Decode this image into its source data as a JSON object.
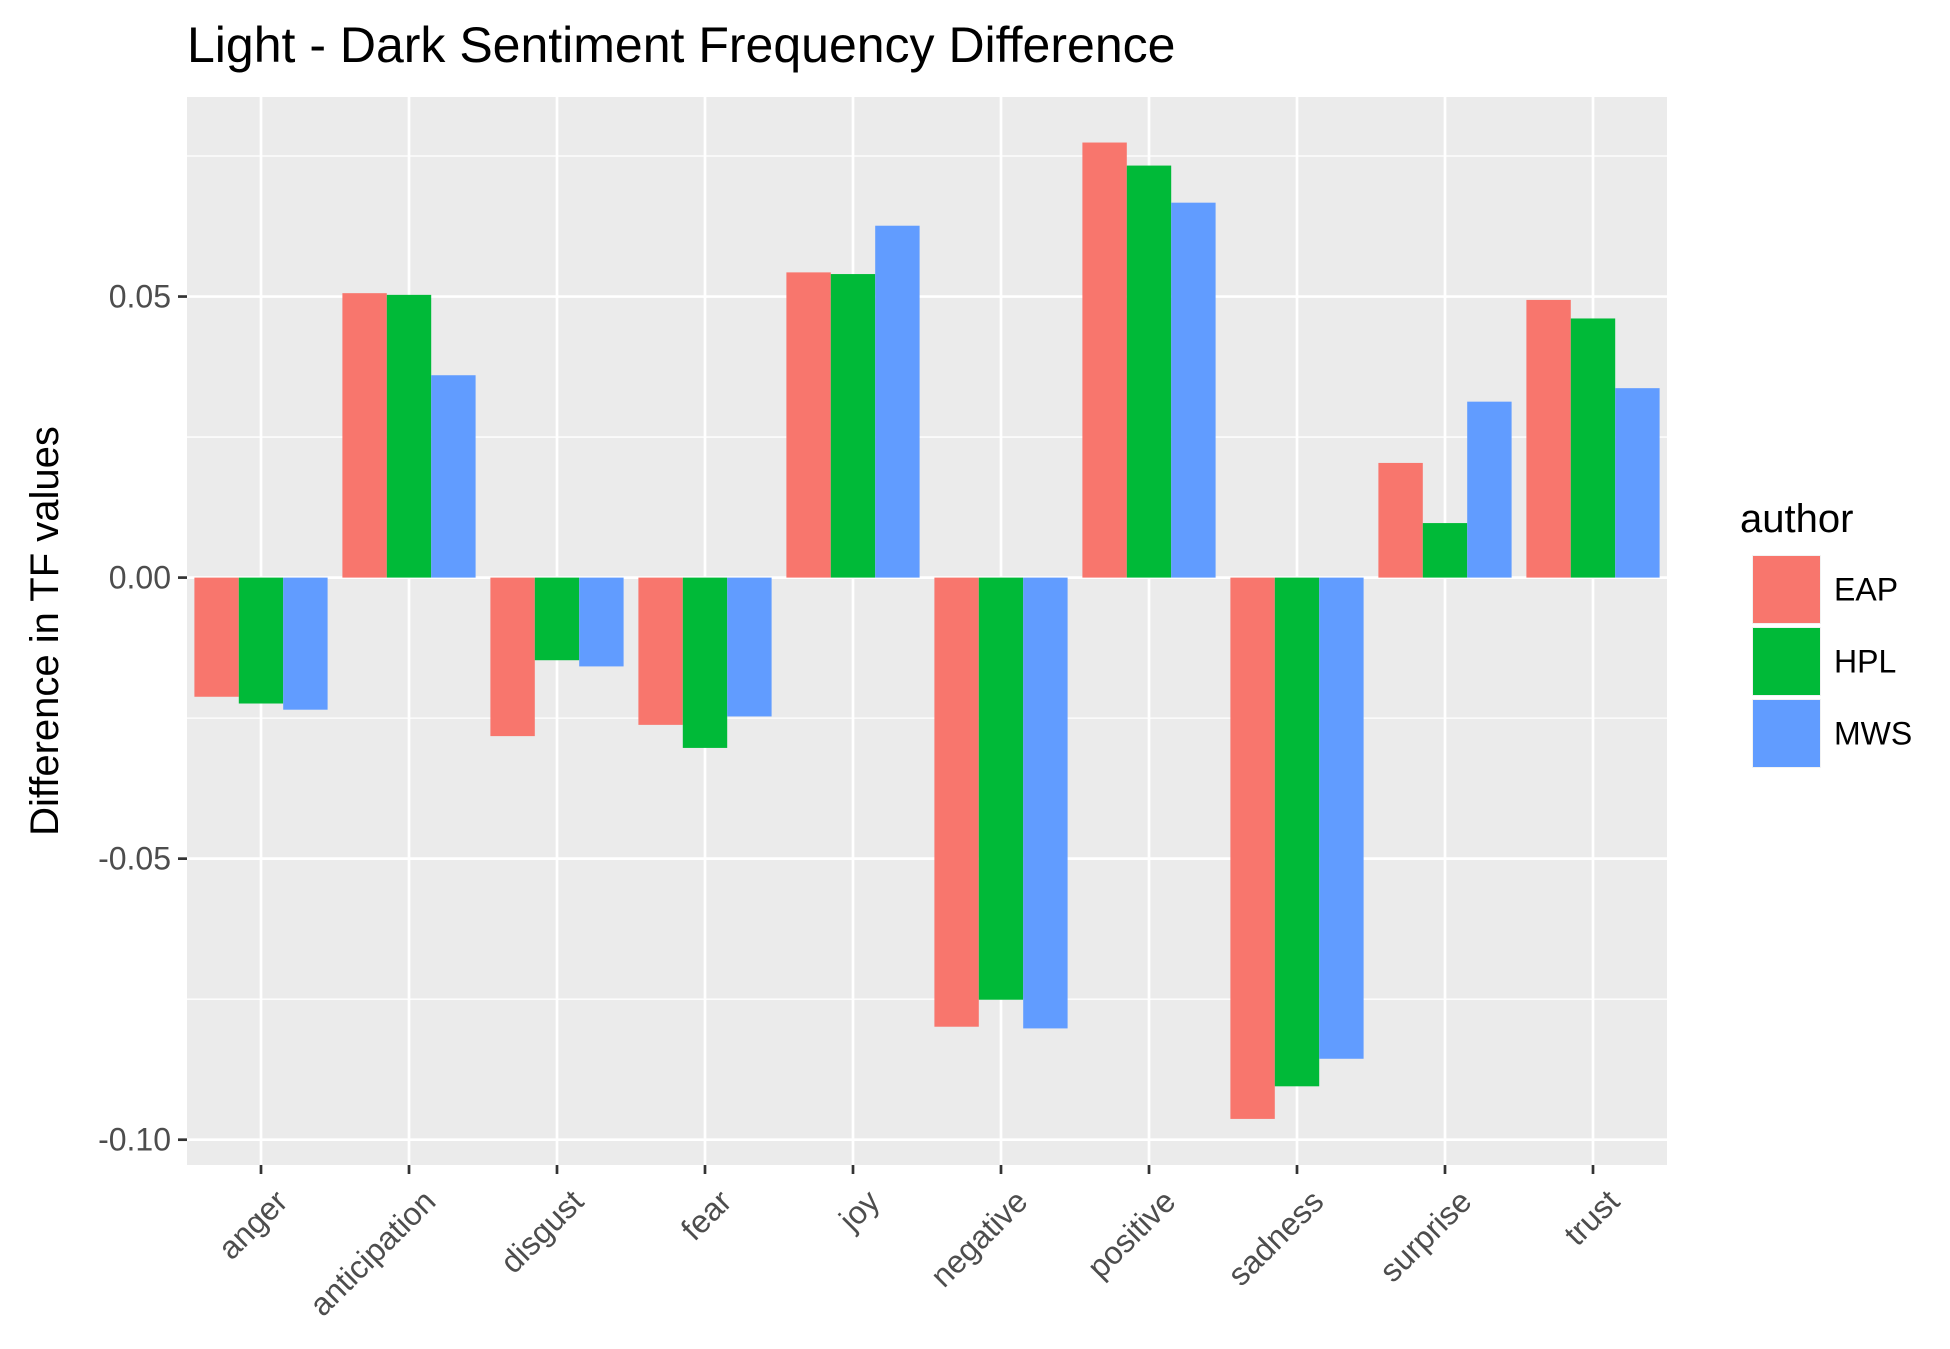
{
  "chart_data": {
    "type": "bar",
    "title": "Light - Dark Sentiment Frequency Difference",
    "xlabel": "",
    "ylabel": "Difference in TF values",
    "categories": [
      "anger",
      "anticipation",
      "disgust",
      "fear",
      "joy",
      "negative",
      "positive",
      "sadness",
      "surprise",
      "trust"
    ],
    "series": [
      {
        "name": "EAP",
        "color": "#F8766D",
        "values": [
          -0.0212,
          0.0506,
          -0.0282,
          -0.0262,
          0.0543,
          -0.0799,
          0.0774,
          -0.0963,
          0.0204,
          0.0494
        ]
      },
      {
        "name": "HPL",
        "color": "#00BA38",
        "values": [
          -0.0224,
          0.0503,
          -0.0147,
          -0.0303,
          0.054,
          -0.0751,
          0.0733,
          -0.0905,
          0.0097,
          0.0461
        ]
      },
      {
        "name": "MWS",
        "color": "#619CFF",
        "values": [
          -0.0235,
          0.036,
          -0.0158,
          -0.0247,
          0.0626,
          -0.0802,
          0.0667,
          -0.0856,
          0.0313,
          0.0337
        ]
      }
    ],
    "yticks": [
      -0.1,
      -0.05,
      0.0,
      0.05
    ],
    "ytick_labels": [
      "-0.10",
      "-0.05",
      "0.00",
      "0.05"
    ],
    "ylim": [
      -0.1045,
      0.0855
    ],
    "grid": true,
    "legend": {
      "title": "author",
      "position": "right"
    }
  }
}
